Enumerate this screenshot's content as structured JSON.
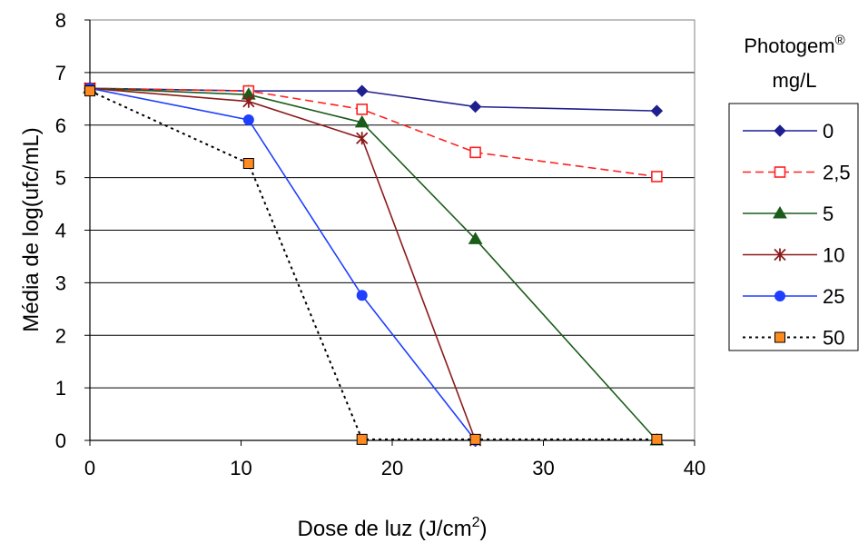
{
  "chart_data": {
    "type": "line",
    "xlabel": "Dose de luz (J/cm",
    "xlabel_sup": "2",
    "xlabel_tail": ")",
    "ylabel": "Média de log(ufc/mL)",
    "xlim": [
      0,
      40
    ],
    "ylim": [
      0,
      8
    ],
    "xticks": [
      "0",
      "10",
      "20",
      "30",
      "40"
    ],
    "yticks": [
      "0",
      "1",
      "2",
      "3",
      "4",
      "5",
      "6",
      "7",
      "8"
    ],
    "grid": "horizontal",
    "legend_position": "right",
    "legend_title": "Photogem",
    "legend_title_sup": "®",
    "legend_subtitle": "mg/L",
    "series": [
      {
        "name": "0",
        "color": "#1f1f8f",
        "dash": "solid",
        "marker": "diamond",
        "x": [
          0,
          10.5,
          18,
          25.5,
          37.5
        ],
        "y": [
          6.7,
          6.65,
          6.65,
          6.35,
          6.27
        ]
      },
      {
        "name": "2,5",
        "color": "#ff2020",
        "dash": "dashed",
        "marker": "square-open",
        "x": [
          0,
          10.5,
          18,
          25.5,
          37.5
        ],
        "y": [
          6.7,
          6.65,
          6.3,
          5.48,
          5.02
        ]
      },
      {
        "name": "5",
        "color": "#1a5c1a",
        "dash": "solid",
        "marker": "triangle",
        "x": [
          0,
          10.5,
          18,
          25.5,
          37.5
        ],
        "y": [
          6.7,
          6.58,
          6.05,
          3.83,
          0.0
        ]
      },
      {
        "name": "10",
        "color": "#8b1a1a",
        "dash": "solid",
        "marker": "star",
        "x": [
          0,
          10.5,
          18,
          25.5
        ],
        "y": [
          6.7,
          6.45,
          5.75,
          0.0
        ]
      },
      {
        "name": "25",
        "color": "#1f3fff",
        "dash": "solid",
        "marker": "circle",
        "x": [
          0,
          10.5,
          18,
          25.5
        ],
        "y": [
          6.7,
          6.1,
          2.76,
          0.0
        ]
      },
      {
        "name": "50",
        "color": "#000000",
        "dash": "dotted",
        "marker": "square-orange",
        "x": [
          0,
          10.5,
          18,
          25.5,
          37.5
        ],
        "y": [
          6.65,
          5.27,
          0.02,
          0.02,
          0.02
        ]
      }
    ]
  }
}
